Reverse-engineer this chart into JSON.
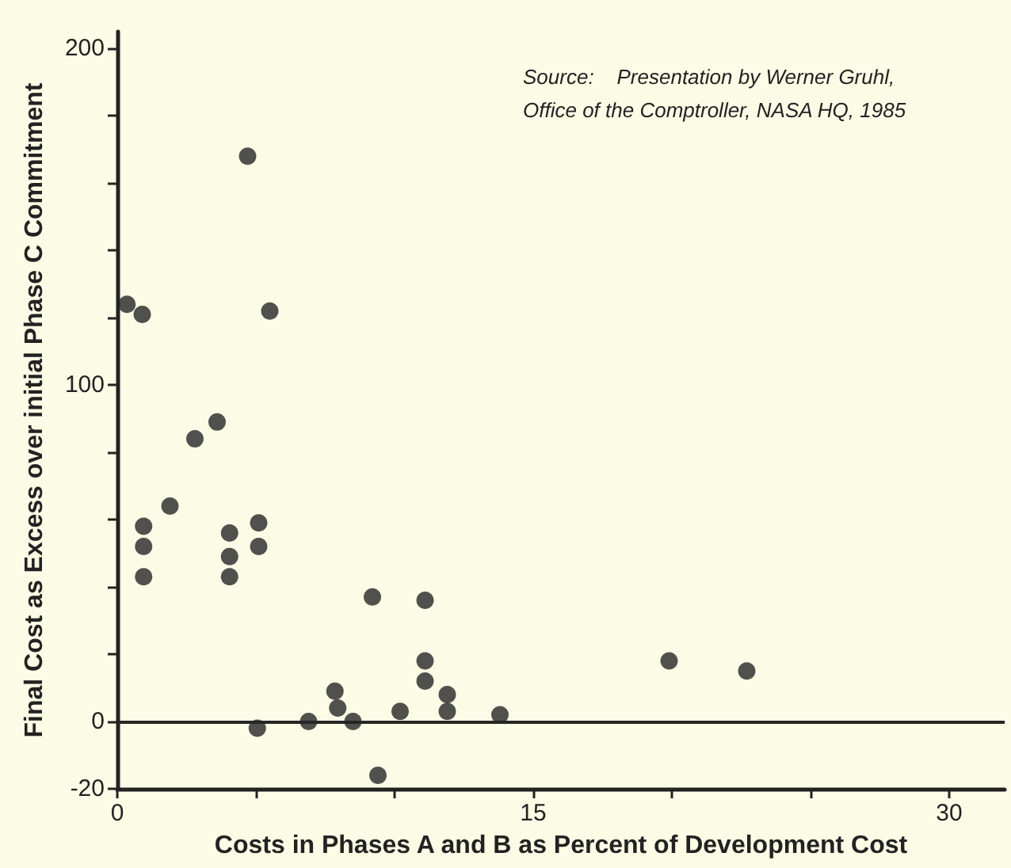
{
  "chart_data": {
    "type": "scatter",
    "xlabel": "Costs in Phases A and B as Percent of Development Cost",
    "ylabel": "Final Cost as Excess over initial Phase C Commitment",
    "annotations": [
      "Source:    Presentation by Werner Gruhl,\nOffice of the Comptroller, NASA HQ, 1985"
    ],
    "x": [
      4.7,
      0.35,
      0.9,
      5.5,
      3.6,
      2.8,
      0.95,
      0.95,
      0.95,
      1.9,
      4.05,
      4.05,
      4.05,
      5.1,
      5.1,
      5.05,
      6.9,
      7.85,
      7.95,
      8.5,
      9.2,
      9.4,
      10.2,
      11.1,
      11.1,
      11.1,
      11.9,
      11.9,
      13.8,
      19.9,
      22.7
    ],
    "values": [
      168,
      124,
      121,
      122,
      89,
      84,
      58,
      52,
      43,
      64,
      56,
      49,
      43,
      59,
      52,
      -2,
      0,
      9,
      4,
      0,
      37,
      -16,
      3,
      36,
      18,
      12,
      8,
      3,
      2,
      18,
      15
    ],
    "color": "#262626",
    "marker": "circle",
    "xlim": [
      0,
      32
    ],
    "xticks": [
      0,
      {
        "value": 5,
        "label": null
      },
      {
        "value": 10,
        "label": null
      },
      15,
      {
        "value": 20,
        "label": null
      },
      {
        "value": 25,
        "label": null
      },
      30
    ],
    "ylim": [
      -20,
      205
    ],
    "yticks": [
      -20,
      0,
      {
        "value": 20,
        "label": null
      },
      {
        "value": 40,
        "label": null
      },
      {
        "value": 60,
        "label": null
      },
      {
        "value": 80,
        "label": null
      },
      100,
      {
        "value": 120,
        "label": null
      },
      {
        "value": 140,
        "label": null
      },
      {
        "value": 160,
        "label": null
      },
      {
        "value": 180,
        "label": null
      },
      200
    ],
    "ref_lines": [
      {
        "axis": "y",
        "value": 0,
        "label": null,
        "color": "#262626"
      }
    ],
    "grid": false
  }
}
